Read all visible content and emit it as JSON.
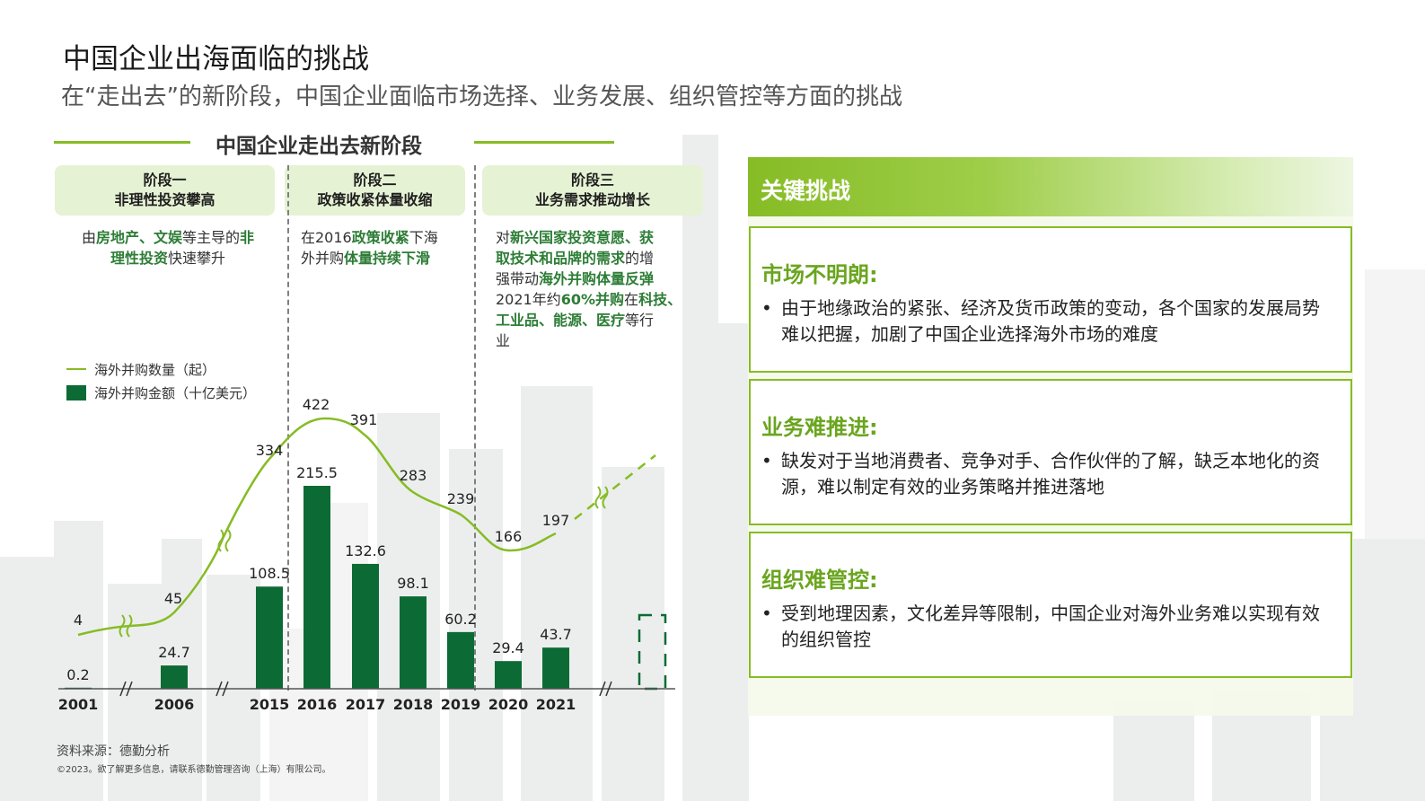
{
  "title": "中国企业出海面临的挑战",
  "subtitle": "在“走出去”的新阶段，中国企业面临市场选择、业务发展、组织管控等方面的挑战",
  "section_title": "中国企业走出去新阶段",
  "stages": [
    {
      "label": "阶段一",
      "name": "非理性投资攀高",
      "desc": [
        [
          {
            "t": "由",
            "h": false
          },
          {
            "t": "房地产、文娱",
            "h": true
          },
          {
            "t": "等主导的",
            "h": false
          },
          {
            "t": "非",
            "h": true
          }
        ],
        [
          {
            "t": "理性投资",
            "h": true
          },
          {
            "t": "快速攀升",
            "h": false
          }
        ]
      ]
    },
    {
      "label": "阶段二",
      "name": "政策收紧体量收缩",
      "desc": [
        [
          {
            "t": "在2016",
            "h": false
          },
          {
            "t": "政策收紧",
            "h": true
          },
          {
            "t": "下海",
            "h": false
          }
        ],
        [
          {
            "t": "外并购",
            "h": false
          },
          {
            "t": "体量持续下滑",
            "h": true
          }
        ]
      ]
    },
    {
      "label": "阶段三",
      "name": "业务需求推动增长",
      "desc": [
        [
          {
            "t": "对",
            "h": false
          },
          {
            "t": "新兴国家投资意愿、获",
            "h": true
          }
        ],
        [
          {
            "t": "取技术和品牌的需求",
            "h": true
          },
          {
            "t": "的增",
            "h": false
          }
        ],
        [
          {
            "t": "强带动",
            "h": false
          },
          {
            "t": "海外并购体量反弹",
            "h": true
          }
        ],
        [
          {
            "t": "2021年约",
            "h": false
          },
          {
            "t": "60%并购",
            "h": true
          },
          {
            "t": "在",
            "h": false
          },
          {
            "t": "科技、",
            "h": true
          }
        ],
        [
          {
            "t": "工业品、能源、医疗",
            "h": true
          },
          {
            "t": "等行",
            "h": false
          }
        ],
        [
          {
            "t": "业",
            "h": false
          }
        ]
      ]
    }
  ],
  "chart_data": {
    "type": "bar",
    "categories": [
      "2001",
      "2006",
      "2015",
      "2016",
      "2017",
      "2018",
      "2019",
      "2020",
      "2021"
    ],
    "series": [
      {
        "name": "海外并购数量（起）",
        "type": "line",
        "values": [
          4,
          45,
          334,
          422,
          391,
          283,
          239,
          166,
          197
        ]
      },
      {
        "name": "海外并购金额（十亿美元）",
        "type": "bar",
        "values": [
          0.2,
          24.7,
          108.5,
          215.5,
          132.6,
          98.1,
          60.2,
          29.4,
          43.7
        ]
      }
    ],
    "bar_labels": [
      "0.2",
      "24.7",
      "108.5",
      "215.5",
      "132.6",
      "98.1",
      "60.2",
      "29.4",
      "43.7"
    ],
    "line_labels": [
      "4",
      "45",
      "334",
      "422",
      "391",
      "283",
      "239",
      "166",
      "197"
    ],
    "axis_breaks": [
      "2001-2006",
      "2006-2015",
      "2021-future"
    ],
    "grid": false,
    "legend_position": "left"
  },
  "challenges_title": "关键挑战",
  "challenges": [
    {
      "title": "市场不明朗:",
      "bullet": "•",
      "text": "由于地缘政治的紧张、经济及货币政策的变动，各个国家的发展局势难以把握，加剧了中国企业选择海外市场的难度"
    },
    {
      "title": "业务难推进:",
      "bullet": "•",
      "text": "缺发对于当地消费者、竞争对手、合作伙伴的了解，缺乏本地化的资源，难以制定有效的业务策略并推进落地"
    },
    {
      "title": "组织难管控:",
      "bullet": "•",
      "text": "受到地理因素，文化差异等限制，中国企业对海外业务难以实现有效的组织管控"
    }
  ],
  "source": "资料来源：德勤分析",
  "copyright": "©2023。欲了解更多信息，请联系德勤管理咨询（上海）有限公司。",
  "colors": {
    "accent_green": "#86bc25",
    "bar_green": "#0c6b34",
    "highlight_text": "#2d7d36",
    "stage_bg": "#e6f2d4"
  }
}
